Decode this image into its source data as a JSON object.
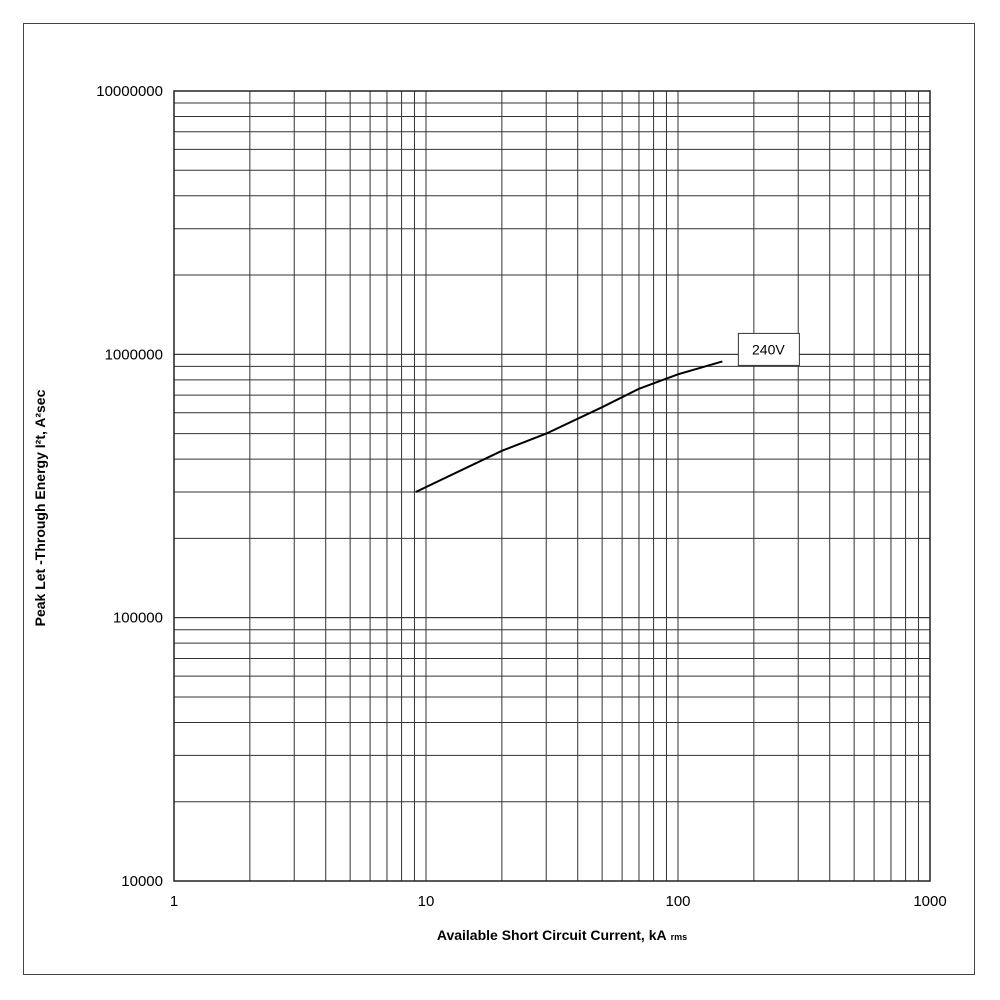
{
  "chart_data": {
    "type": "line",
    "xlabel": "Available Short Circuit Current, kA",
    "xlabel_sub": "rms",
    "ylabel": "Peak Let -Through Energy I²t, A²sec",
    "x_scale": "log",
    "y_scale": "log",
    "xlim": [
      1,
      1000
    ],
    "ylim": [
      10000,
      10000000
    ],
    "x_ticks": [
      "1",
      "10",
      "100",
      "1000"
    ],
    "y_ticks": [
      "10000",
      "100000",
      "1000000",
      "10000000"
    ],
    "grid": true,
    "series": [
      {
        "name": "240V",
        "x": [
          9.1,
          20,
          30,
          50,
          70,
          100,
          150
        ],
        "y": [
          300000,
          430000,
          500000,
          630000,
          740000,
          840000,
          940000
        ],
        "color": "#000000"
      }
    ]
  }
}
